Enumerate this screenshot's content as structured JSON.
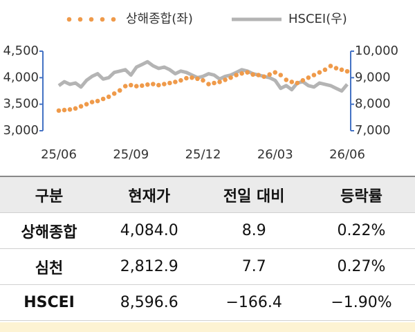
{
  "chart_data": {
    "type": "line",
    "categories": [
      "25/06",
      null,
      null,
      null,
      null,
      null,
      null,
      null,
      null,
      null,
      null,
      null,
      null,
      "25/09",
      null,
      null,
      null,
      null,
      null,
      null,
      null,
      null,
      null,
      null,
      null,
      null,
      "25/12",
      null,
      null,
      null,
      null,
      null,
      null,
      null,
      null,
      null,
      null,
      null,
      null,
      "26/03",
      null,
      null,
      null,
      null,
      null,
      null,
      null,
      null,
      null,
      null,
      null,
      null,
      "26/06"
    ],
    "series": [
      {
        "name": "상해종합(좌)",
        "color": "#ef9a4a",
        "style": "dots",
        "values": [
          3380,
          3390,
          3400,
          3420,
          3460,
          3500,
          3540,
          3560,
          3600,
          3640,
          3700,
          3760,
          3840,
          3860,
          3840,
          3850,
          3870,
          3880,
          3860,
          3880,
          3900,
          3920,
          3950,
          3990,
          4000,
          3980,
          3950,
          3880,
          3900,
          3920,
          3960,
          4000,
          4050,
          4080,
          4100,
          4060,
          4050,
          4020,
          4060,
          4100,
          4050,
          3960,
          3920,
          3900,
          3950,
          4000,
          4050,
          4100,
          4150,
          4220,
          4180,
          4150,
          4120
        ]
      },
      {
        "name": "HSCEI(우)",
        "color": "#b4b4b4",
        "style": "line",
        "axis": "y2",
        "values": [
          8700,
          8850,
          8750,
          8800,
          8650,
          8900,
          9050,
          9150,
          8950,
          9000,
          9200,
          9250,
          9300,
          9100,
          9400,
          9500,
          9600,
          9450,
          9350,
          9400,
          9300,
          9150,
          9250,
          9200,
          9100,
          9000,
          9050,
          9150,
          9100,
          8950,
          9050,
          9100,
          9200,
          9300,
          9250,
          9150,
          9100,
          9050,
          9000,
          8900,
          8600,
          8700,
          8550,
          8800,
          8850,
          8700,
          8650,
          8800,
          8750,
          8700,
          8600,
          8500,
          8750
        ]
      }
    ],
    "ylim": [
      3000,
      4500
    ],
    "yticks": [
      {
        "value": 3000,
        "label": "3,000"
      },
      {
        "value": 3500,
        "label": "3,500"
      },
      {
        "value": 4000,
        "label": "4,000"
      },
      {
        "value": 4500,
        "label": "4,500"
      }
    ],
    "y2lim": [
      7000,
      10000
    ],
    "y2ticks": [
      {
        "value": 7000,
        "label": "7,000"
      },
      {
        "value": 8000,
        "label": "8,000"
      },
      {
        "value": 9000,
        "label": "9,000"
      },
      {
        "value": 10000,
        "label": "10,000"
      }
    ],
    "axis_color": "#4472c4",
    "legend": "top"
  },
  "table": {
    "header": [
      "구분",
      "현재가",
      "전일 대비",
      "등락률"
    ],
    "rows": [
      [
        "상해종합",
        "4,084.0",
        "8.9",
        "0.22%"
      ],
      [
        "심천",
        "2,812.9",
        "7.7",
        "0.27%"
      ],
      [
        "HSCEI",
        "8,596.6",
        "−166.4",
        "−1.90%"
      ]
    ]
  }
}
